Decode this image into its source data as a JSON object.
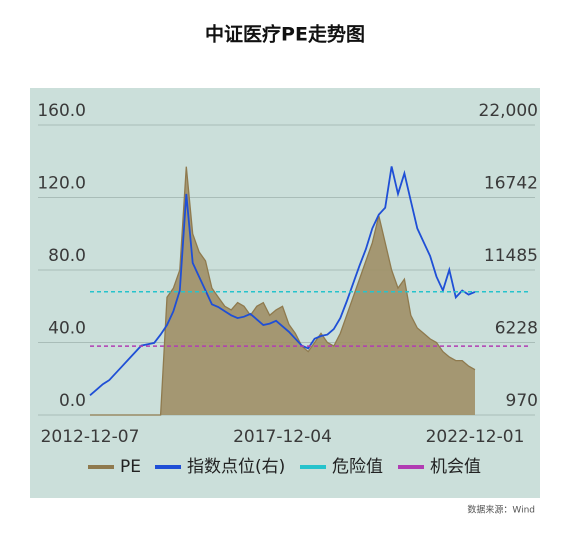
{
  "chart_data": {
    "type": "area-line",
    "title": "中证医疗PE走势图",
    "categories": [
      "2012-12-07",
      null,
      null,
      null,
      null,
      null,
      null,
      null,
      null,
      null,
      null,
      null,
      null,
      null,
      null,
      null,
      null,
      null,
      null,
      null,
      null,
      null,
      null,
      null,
      null,
      null,
      null,
      null,
      null,
      null,
      "2017-12-04",
      null,
      null,
      null,
      null,
      null,
      null,
      null,
      null,
      null,
      null,
      null,
      null,
      null,
      null,
      null,
      null,
      null,
      null,
      null,
      null,
      null,
      null,
      null,
      null,
      null,
      null,
      null,
      null,
      null,
      "2022-12-01"
    ],
    "series": [
      {
        "name": "PE",
        "color": "#8f7a4e",
        "values": [
          0,
          0,
          0,
          0,
          0,
          0,
          0,
          0,
          0,
          0,
          0,
          0,
          65,
          70,
          80,
          137,
          100,
          90,
          85,
          70,
          65,
          60,
          58,
          62,
          60,
          55,
          60,
          62,
          55,
          58,
          60,
          50,
          45,
          38,
          35,
          40,
          45,
          40,
          38,
          45,
          55,
          65,
          75,
          85,
          95,
          110,
          95,
          80,
          70,
          75,
          55,
          48,
          45,
          42,
          40,
          35,
          32,
          30,
          30,
          27,
          25
        ]
      },
      {
        "name": "指数点位(右)",
        "color": "#1f4fd6",
        "axis": "y2",
        "values": [
          2400,
          2800,
          3200,
          3500,
          4000,
          4500,
          5000,
          5500,
          6000,
          6100,
          6200,
          6800,
          7500,
          8500,
          10000,
          17000,
          12000,
          11000,
          10000,
          9000,
          8800,
          8500,
          8200,
          8000,
          8100,
          8300,
          7900,
          7500,
          7600,
          7800,
          7400,
          7000,
          6500,
          6000,
          5800,
          6500,
          6700,
          6800,
          7200,
          8000,
          9200,
          10500,
          11800,
          13000,
          14500,
          15500,
          16000,
          19000,
          17000,
          18500,
          16500,
          14500,
          13500,
          12500,
          11000,
          10000,
          11500,
          9500,
          10000,
          9700,
          9900
        ]
      }
    ],
    "reference_lines": [
      {
        "name": "危险值",
        "value": 68,
        "color": "#26c3cc"
      },
      {
        "name": "机会值",
        "value": 38,
        "color": "#b13cb3"
      }
    ],
    "ylim": [
      0,
      160
    ],
    "yticks": [
      {
        "value": 0,
        "label": "0.0"
      },
      {
        "value": 40,
        "label": "40.0"
      },
      {
        "value": 80,
        "label": "80.0"
      },
      {
        "value": 120,
        "label": "120.0"
      },
      {
        "value": 160,
        "label": "160.0"
      }
    ],
    "y2lim": [
      970,
      22000
    ],
    "y2ticks": [
      970,
      6228,
      11485,
      16742,
      {
        "value": 22000,
        "label": "22,000"
      }
    ],
    "grid": true,
    "source": "数据来源：Wind"
  }
}
